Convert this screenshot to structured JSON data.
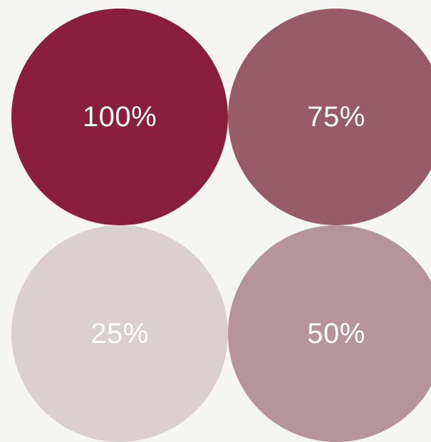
{
  "swatches": [
    {
      "label": "100%",
      "color": "#8a1e3f"
    },
    {
      "label": "75%",
      "color": "#975b69"
    },
    {
      "label": "25%",
      "color": "#dbcfd2"
    },
    {
      "label": "50%",
      "color": "#b5959b"
    }
  ]
}
